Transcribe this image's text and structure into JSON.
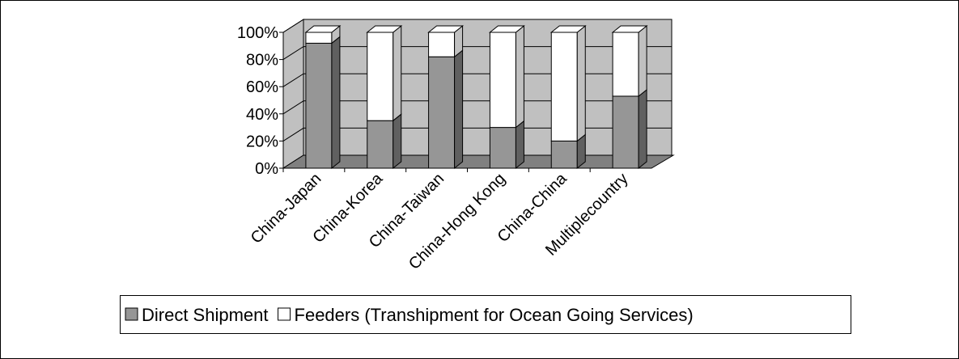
{
  "chart_data": {
    "type": "bar",
    "stacked": true,
    "categories": [
      "China-Japan",
      "China-Korea",
      "China-Taiwan",
      "China-Hong Kong",
      "China-China",
      "Multiplecountry"
    ],
    "series": [
      {
        "name": "Direct Shipment",
        "color": "#969696",
        "values": [
          92,
          35,
          82,
          30,
          20,
          53
        ]
      },
      {
        "name": "Feeders (Transhipment for Ocean Going Services)",
        "color": "#ffffff",
        "values": [
          8,
          65,
          18,
          70,
          80,
          47
        ]
      }
    ],
    "ylim": [
      0,
      100
    ],
    "yticks": [
      {
        "value": 0,
        "label": "0%"
      },
      {
        "value": 20,
        "label": "20%"
      },
      {
        "value": 40,
        "label": "40%"
      },
      {
        "value": 60,
        "label": "60%"
      },
      {
        "value": 80,
        "label": "80%"
      },
      {
        "value": 100,
        "label": "100%"
      }
    ],
    "grid": true,
    "legend": "bottom"
  }
}
